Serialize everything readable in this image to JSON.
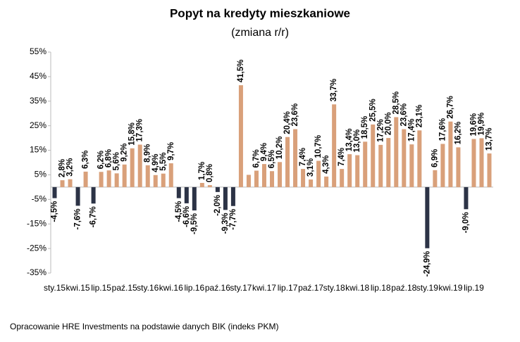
{
  "chart_data": {
    "type": "bar",
    "title": "Popyt na kredyty mieszkaniowe",
    "subtitle": "(zmiana r/r)",
    "source": "Opracowanie HRE Investments na podstawie danych BIK (indeks PKM)",
    "categories": [
      "sty.15",
      null,
      null,
      "kwi.15",
      null,
      null,
      "lip.15",
      null,
      null,
      "paź.15",
      null,
      null,
      "sty.16",
      null,
      null,
      "kwi.16",
      null,
      null,
      "lip.16",
      null,
      null,
      "paź.16",
      null,
      null,
      "sty.17",
      null,
      null,
      "kwi.17",
      null,
      null,
      "lip.17",
      null,
      null,
      "paź.17",
      null,
      null,
      "sty.18",
      null,
      null,
      "kwi.18",
      null,
      null,
      "lip.18",
      null,
      null,
      "paź.18",
      null,
      null,
      "sty.19",
      null,
      null,
      "kwi.19",
      null,
      null,
      "lip.19",
      null,
      null
    ],
    "values": [
      -4.5,
      2.8,
      3.2,
      -7.6,
      6.3,
      -6.7,
      6.2,
      6.8,
      5.6,
      9.2,
      15.8,
      17.3,
      8.9,
      4.9,
      5.5,
      9.7,
      -4.5,
      -6.6,
      -9.5,
      1.7,
      0.8,
      -2.0,
      -9.3,
      -7.7,
      41.5,
      5.0,
      6.7,
      9.4,
      6.5,
      10.2,
      20.4,
      23.6,
      7.4,
      3.1,
      10.7,
      4.3,
      33.7,
      7.4,
      13.4,
      13.0,
      18.5,
      25.5,
      17.2,
      20.0,
      28.5,
      23.6,
      17.4,
      23.1,
      -24.9,
      6.9,
      17.6,
      26.7,
      16.2,
      -9.0,
      19.6,
      19.9,
      13.7
    ],
    "value_labels": [
      "-4,5%",
      "2,8%",
      "3,2%",
      "-7,6%",
      "6,3%",
      "-6,7%",
      "6,2%",
      "6,8%",
      "5,6%",
      "9,2%",
      "15,8%",
      "17,3%",
      "8,9%",
      "4,9%",
      "5,5%",
      "9,7%",
      "-4,5%",
      "-6,6%",
      "-9,5%",
      "1,7%",
      "0,8%",
      "-2,0%",
      "-9,3%",
      "-7,7%",
      "41,5%",
      null,
      "6,7%",
      "9,4%",
      "6,5%",
      "10,2%",
      "20,4%",
      "23,6%",
      "7,4%",
      "3,1%",
      "10,7%",
      "4,3%",
      "33,7%",
      "7,4%",
      "13,4%",
      "13,0%",
      "18,5%",
      "25,5%",
      "17,2%",
      "20,0%",
      "28,5%",
      "23,6%",
      "17,4%",
      "23,1%",
      "-24,9%",
      "6,9%",
      "17,6%",
      "26,7%",
      "16,2%",
      "-9,0%",
      "19,6%",
      "19,9%",
      "13,7%"
    ],
    "color": "#d9a07a",
    "negative_color": "#2c3346",
    "ylim": [
      -35,
      55
    ],
    "yticks": [
      {
        "value": -35,
        "label": "-35%"
      },
      {
        "value": -25,
        "label": "-25%"
      },
      {
        "value": -15,
        "label": "-15%"
      },
      {
        "value": -5,
        "label": "-5%"
      },
      {
        "value": 5,
        "label": "5%"
      },
      {
        "value": 15,
        "label": "15%"
      },
      {
        "value": 25,
        "label": "25%"
      },
      {
        "value": 35,
        "label": "35%"
      },
      {
        "value": 45,
        "label": "45%"
      },
      {
        "value": 55,
        "label": "55%"
      }
    ],
    "grid": false
  }
}
